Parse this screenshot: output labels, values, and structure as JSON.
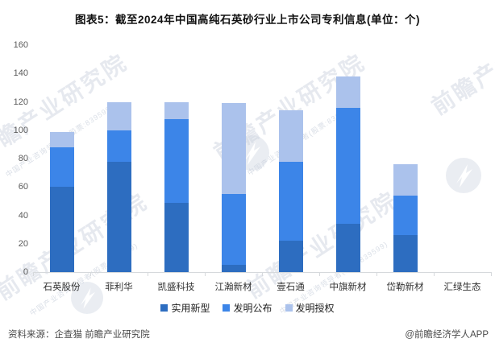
{
  "title": "图表5：截至2024年中国高纯石英砂行业上市公司专利信息(单位：个)",
  "chart_data": {
    "type": "bar",
    "stacked": true,
    "title": "图表5：截至2024年中国高纯石英砂行业上市公司专利信息(单位：个)",
    "categories": [
      "石英股份",
      "菲利华",
      "凯盛科技",
      "江瀚新材",
      "壹石通",
      "中旗新材",
      "岱勒新材",
      "汇绿生态"
    ],
    "series": [
      {
        "key": "utility-model",
        "name": "实用新型",
        "color": "#2d6dc0",
        "values": [
          60,
          78,
          49,
          5,
          22,
          34,
          26,
          0
        ]
      },
      {
        "key": "invention-published",
        "name": "发明公布",
        "color": "#3c85e8",
        "values": [
          28,
          22,
          59,
          50,
          56,
          82,
          28,
          0
        ]
      },
      {
        "key": "invention-granted",
        "name": "发明授权",
        "color": "#abc2ec",
        "values": [
          11,
          20,
          12,
          64,
          36,
          22,
          22,
          0
        ]
      }
    ],
    "totals": [
      99,
      120,
      120,
      119,
      114,
      138,
      76,
      0
    ],
    "xlabel": "",
    "ylabel": "",
    "ylim": [
      0,
      160
    ],
    "ytick_step": 20,
    "grid": false,
    "legend_position": "bottom"
  },
  "footer": {
    "source": "资料来源：企查猫 前瞻产业研究院",
    "credit": "@前瞻经济学人APP"
  },
  "watermark": {
    "text": "前瞻产业研究院",
    "subtext": "中国产业咨询领导者(股票:839599)"
  }
}
